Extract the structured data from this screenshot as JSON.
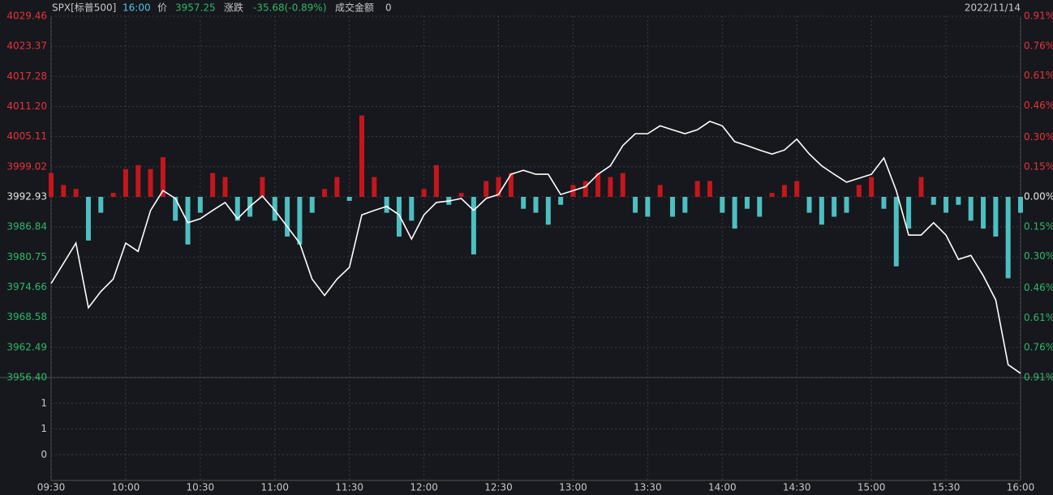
{
  "header": {
    "symbol": "SPX[标普500]",
    "time": "16:00",
    "price_label": "价",
    "price": 3957.25,
    "change_label": "涨跌",
    "change": "-35.68(-0.89%)",
    "amount_label": "成交金额",
    "amount": 0,
    "date": "2022/11/14"
  },
  "chart_data": [
    {
      "type": "line",
      "x": [
        0,
        5,
        10,
        15,
        20,
        25,
        30,
        35,
        40,
        45,
        50,
        55,
        60,
        65,
        70,
        75,
        80,
        85,
        90,
        95,
        100,
        105,
        110,
        115,
        120,
        125,
        130,
        135,
        140,
        145,
        150,
        155,
        160,
        165,
        170,
        175,
        180,
        185,
        190,
        195,
        200,
        205,
        210,
        215,
        220,
        225,
        230,
        235,
        240,
        245,
        250,
        255,
        260,
        265,
        270,
        275,
        280,
        285,
        290,
        295,
        300,
        305,
        310,
        315,
        320,
        325,
        330,
        335,
        340,
        345,
        350,
        355,
        360,
        365,
        370,
        375,
        380,
        385,
        390
      ],
      "xlim": [
        0,
        390
      ],
      "xticks": [
        {
          "value": 0,
          "label": "09:30"
        },
        {
          "value": 30,
          "label": "10:00"
        },
        {
          "value": 60,
          "label": "10:30"
        },
        {
          "value": 90,
          "label": "11:00"
        },
        {
          "value": 120,
          "label": "11:30"
        },
        {
          "value": 150,
          "label": "12:00"
        },
        {
          "value": 180,
          "label": "12:30"
        },
        {
          "value": 210,
          "label": "13:00"
        },
        {
          "value": 240,
          "label": "13:30"
        },
        {
          "value": 270,
          "label": "14:00"
        },
        {
          "value": 300,
          "label": "14:30"
        },
        {
          "value": 330,
          "label": "15:00"
        },
        {
          "value": 360,
          "label": "15:30"
        },
        {
          "value": 390,
          "label": "16:00"
        }
      ],
      "ylim": [
        3956.4,
        4029.46
      ],
      "yticks": [
        4029.46,
        4023.37,
        4017.28,
        {
          "value": 4011.2,
          "label": "4011.20"
        },
        4005.11,
        3999.02,
        3992.93,
        3986.84,
        3980.75,
        3974.66,
        3968.58,
        3962.49,
        {
          "value": 3956.4,
          "label": "3956.40"
        }
      ],
      "y2lim": [
        -0.91,
        0.91
      ],
      "y2ticks": [
        {
          "value": 0.91,
          "label": "0.91%"
        },
        {
          "value": 0.76,
          "label": "0.76%"
        },
        {
          "value": 0.61,
          "label": "0.61%"
        },
        {
          "value": 0.46,
          "label": "0.46%"
        },
        {
          "value": 0.3,
          "label": "0.30%"
        },
        {
          "value": 0.15,
          "label": "0.15%"
        },
        {
          "value": 0,
          "label": "0.00%"
        },
        {
          "value": -0.15,
          "label": "0.15%"
        },
        {
          "value": -0.3,
          "label": "0.30%"
        },
        {
          "value": -0.46,
          "label": "0.46%"
        },
        {
          "value": -0.61,
          "label": "0.61%"
        },
        {
          "value": -0.76,
          "label": "0.76%"
        },
        {
          "value": -0.91,
          "label": "0.91%"
        }
      ],
      "grid": true,
      "series": [
        {
          "type": "line",
          "color": "#ffffff",
          "values": [
            3975.4,
            3979.5,
            3983.6,
            3970.5,
            3973.8,
            3976.3,
            3983.6,
            3981.9,
            3990.2,
            3994.2,
            3992.6,
            3987.7,
            3988.5,
            3990.2,
            3991.8,
            3988.5,
            3991.0,
            3993.1,
            3990.2,
            3986.9,
            3983.6,
            3976.3,
            3973.0,
            3976.3,
            3978.7,
            3989.3,
            3990.2,
            3991.0,
            3989.3,
            3984.4,
            3989.3,
            3991.8,
            3992.1,
            3992.6,
            3990.2,
            3992.6,
            3993.4,
            3997.5,
            3998.3,
            3997.5,
            3997.5,
            3993.4,
            3994.2,
            3995.0,
            3997.5,
            3999.2,
            4003.3,
            4005.7,
            4005.7,
            4007.3,
            4006.5,
            4005.7,
            4006.5,
            4008.2,
            4007.3,
            4004.1,
            4003.3,
            4002.4,
            4001.6,
            4002.4,
            4004.6,
            4001.6,
            3999.2,
            3997.5,
            3995.9,
            3996.7,
            3997.5,
            4000.8,
            3994.2,
            3985.2,
            3985.2,
            3987.7,
            3985.2,
            3980.3,
            3981.1,
            3977.0,
            3972.1,
            3959.0,
            3957.25
          ]
        },
        {
          "type": "bar",
          "axis": "y2",
          "colors": {
            "up": "#c4161c",
            "down": "#4dbfc1"
          },
          "values": [
            0.12,
            0.06,
            0.04,
            -0.22,
            -0.08,
            0.02,
            0.14,
            0.16,
            0.14,
            0.2,
            -0.12,
            -0.24,
            -0.08,
            0.12,
            0.1,
            -0.12,
            -0.1,
            0.1,
            -0.12,
            -0.2,
            -0.24,
            -0.08,
            0.04,
            0.1,
            -0.02,
            0.41,
            0.1,
            -0.08,
            -0.2,
            -0.12,
            0.04,
            0.16,
            -0.04,
            0.02,
            -0.29,
            0.08,
            0.1,
            0.12,
            -0.06,
            -0.08,
            -0.14,
            -0.04,
            0.06,
            0.08,
            0.12,
            0.1,
            0.12,
            -0.08,
            -0.1,
            0.06,
            -0.1,
            -0.08,
            0.08,
            0.08,
            -0.08,
            -0.16,
            -0.06,
            -0.1,
            0.02,
            0.06,
            0.08,
            -0.08,
            -0.14,
            -0.1,
            -0.08,
            0.06,
            0.1,
            -0.06,
            -0.35,
            -0.16,
            0.1,
            -0.04,
            -0.08,
            -0.04,
            -0.12,
            -0.16,
            -0.2,
            -0.41,
            -0.08
          ]
        }
      ]
    },
    {
      "type": "bar",
      "ylim": [
        0,
        1
      ],
      "yticks": [
        {
          "value": 0.25,
          "label": "0"
        },
        {
          "value": 0.5,
          "label": "1"
        },
        {
          "value": 0.75,
          "label": "1"
        }
      ],
      "grid": true
    }
  ]
}
